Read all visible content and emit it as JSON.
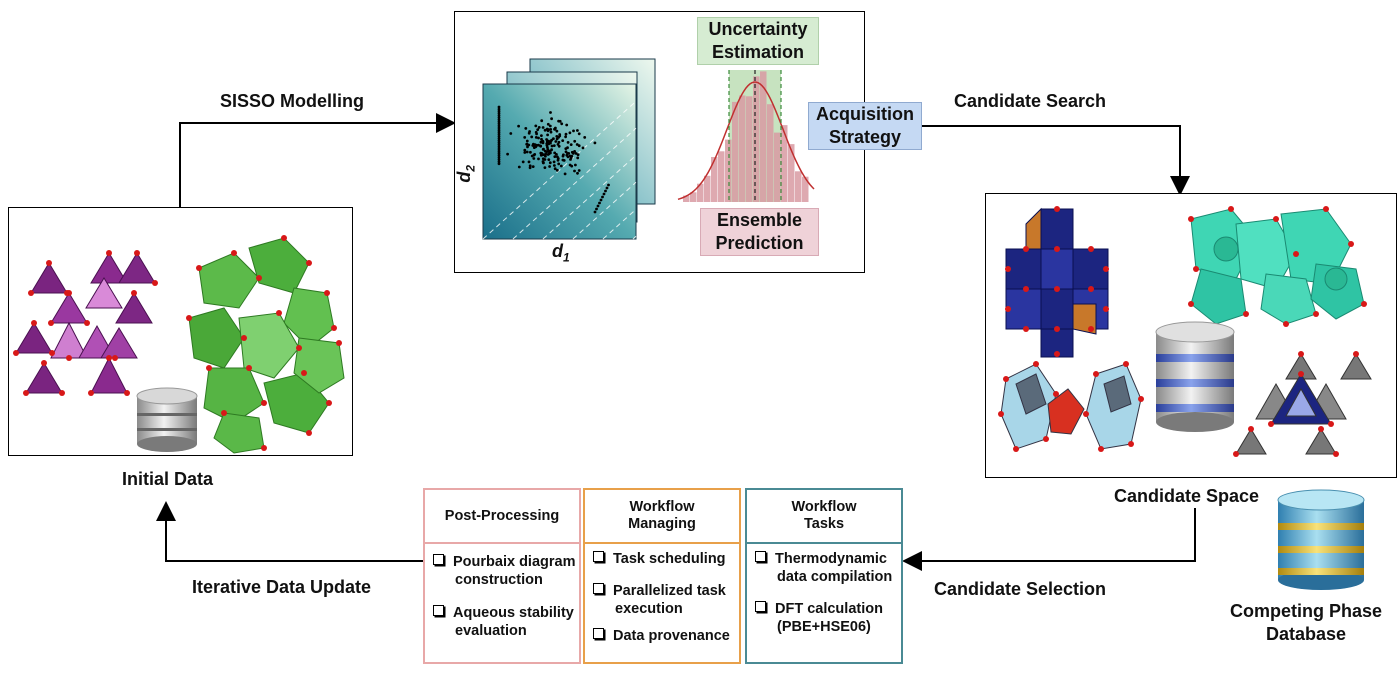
{
  "labels": {
    "sisso": "SISSO Modelling",
    "candidate_search": "Candidate Search",
    "initial_data": "Initial Data",
    "candidate_space": "Candidate Space",
    "candidate_selection": "Candidate Selection",
    "iterative_update": "Iterative Data Update",
    "competing_db_line1": "Competing Phase",
    "competing_db_line2": "Database",
    "axis_d1": "d",
    "axis_d1_sub": "1",
    "axis_d2": "d",
    "axis_d2_sub": "2"
  },
  "model_boxes": {
    "uncertainty_line1": "Uncertainty",
    "uncertainty_line2": "Estimation",
    "acquisition_line1": "Acquisition",
    "acquisition_line2": "Strategy",
    "ensemble_line1": "Ensemble",
    "ensemble_line2": "Prediction"
  },
  "workflow": {
    "post_processing": {
      "title": "Post-Processing",
      "items": [
        {
          "line1": "Pourbaix diagram",
          "line2": "construction"
        },
        {
          "line1": "Aqueous stability",
          "line2": "evaluation"
        }
      ]
    },
    "managing": {
      "title_line1": "Workflow",
      "title_line2": "Managing",
      "items": [
        {
          "line1": "Task scheduling",
          "line2": ""
        },
        {
          "line1": "Parallelized task",
          "line2": "execution"
        },
        {
          "line1": "Data provenance",
          "line2": ""
        }
      ]
    },
    "tasks": {
      "title_line1": "Workflow",
      "title_line2": "Tasks",
      "items": [
        {
          "line1": "Thermodynamic",
          "line2": "data compilation"
        },
        {
          "line1": "DFT calculation",
          "line2": "(PBE+HSE06)"
        }
      ]
    }
  },
  "colors": {
    "uncertainty_fill": "#d6ecd2",
    "acquisition_fill": "#c5d9f3",
    "ensemble_fill": "#efd2d8",
    "red_arrow": "#e02020",
    "post_border": "#e8a8a8",
    "managing_border": "#e8a04a",
    "tasks_border": "#4a8a94",
    "purple": "#8a2a8e",
    "green": "#4cae3c",
    "navy": "#1c2580",
    "teal": "#3fd6b4"
  }
}
